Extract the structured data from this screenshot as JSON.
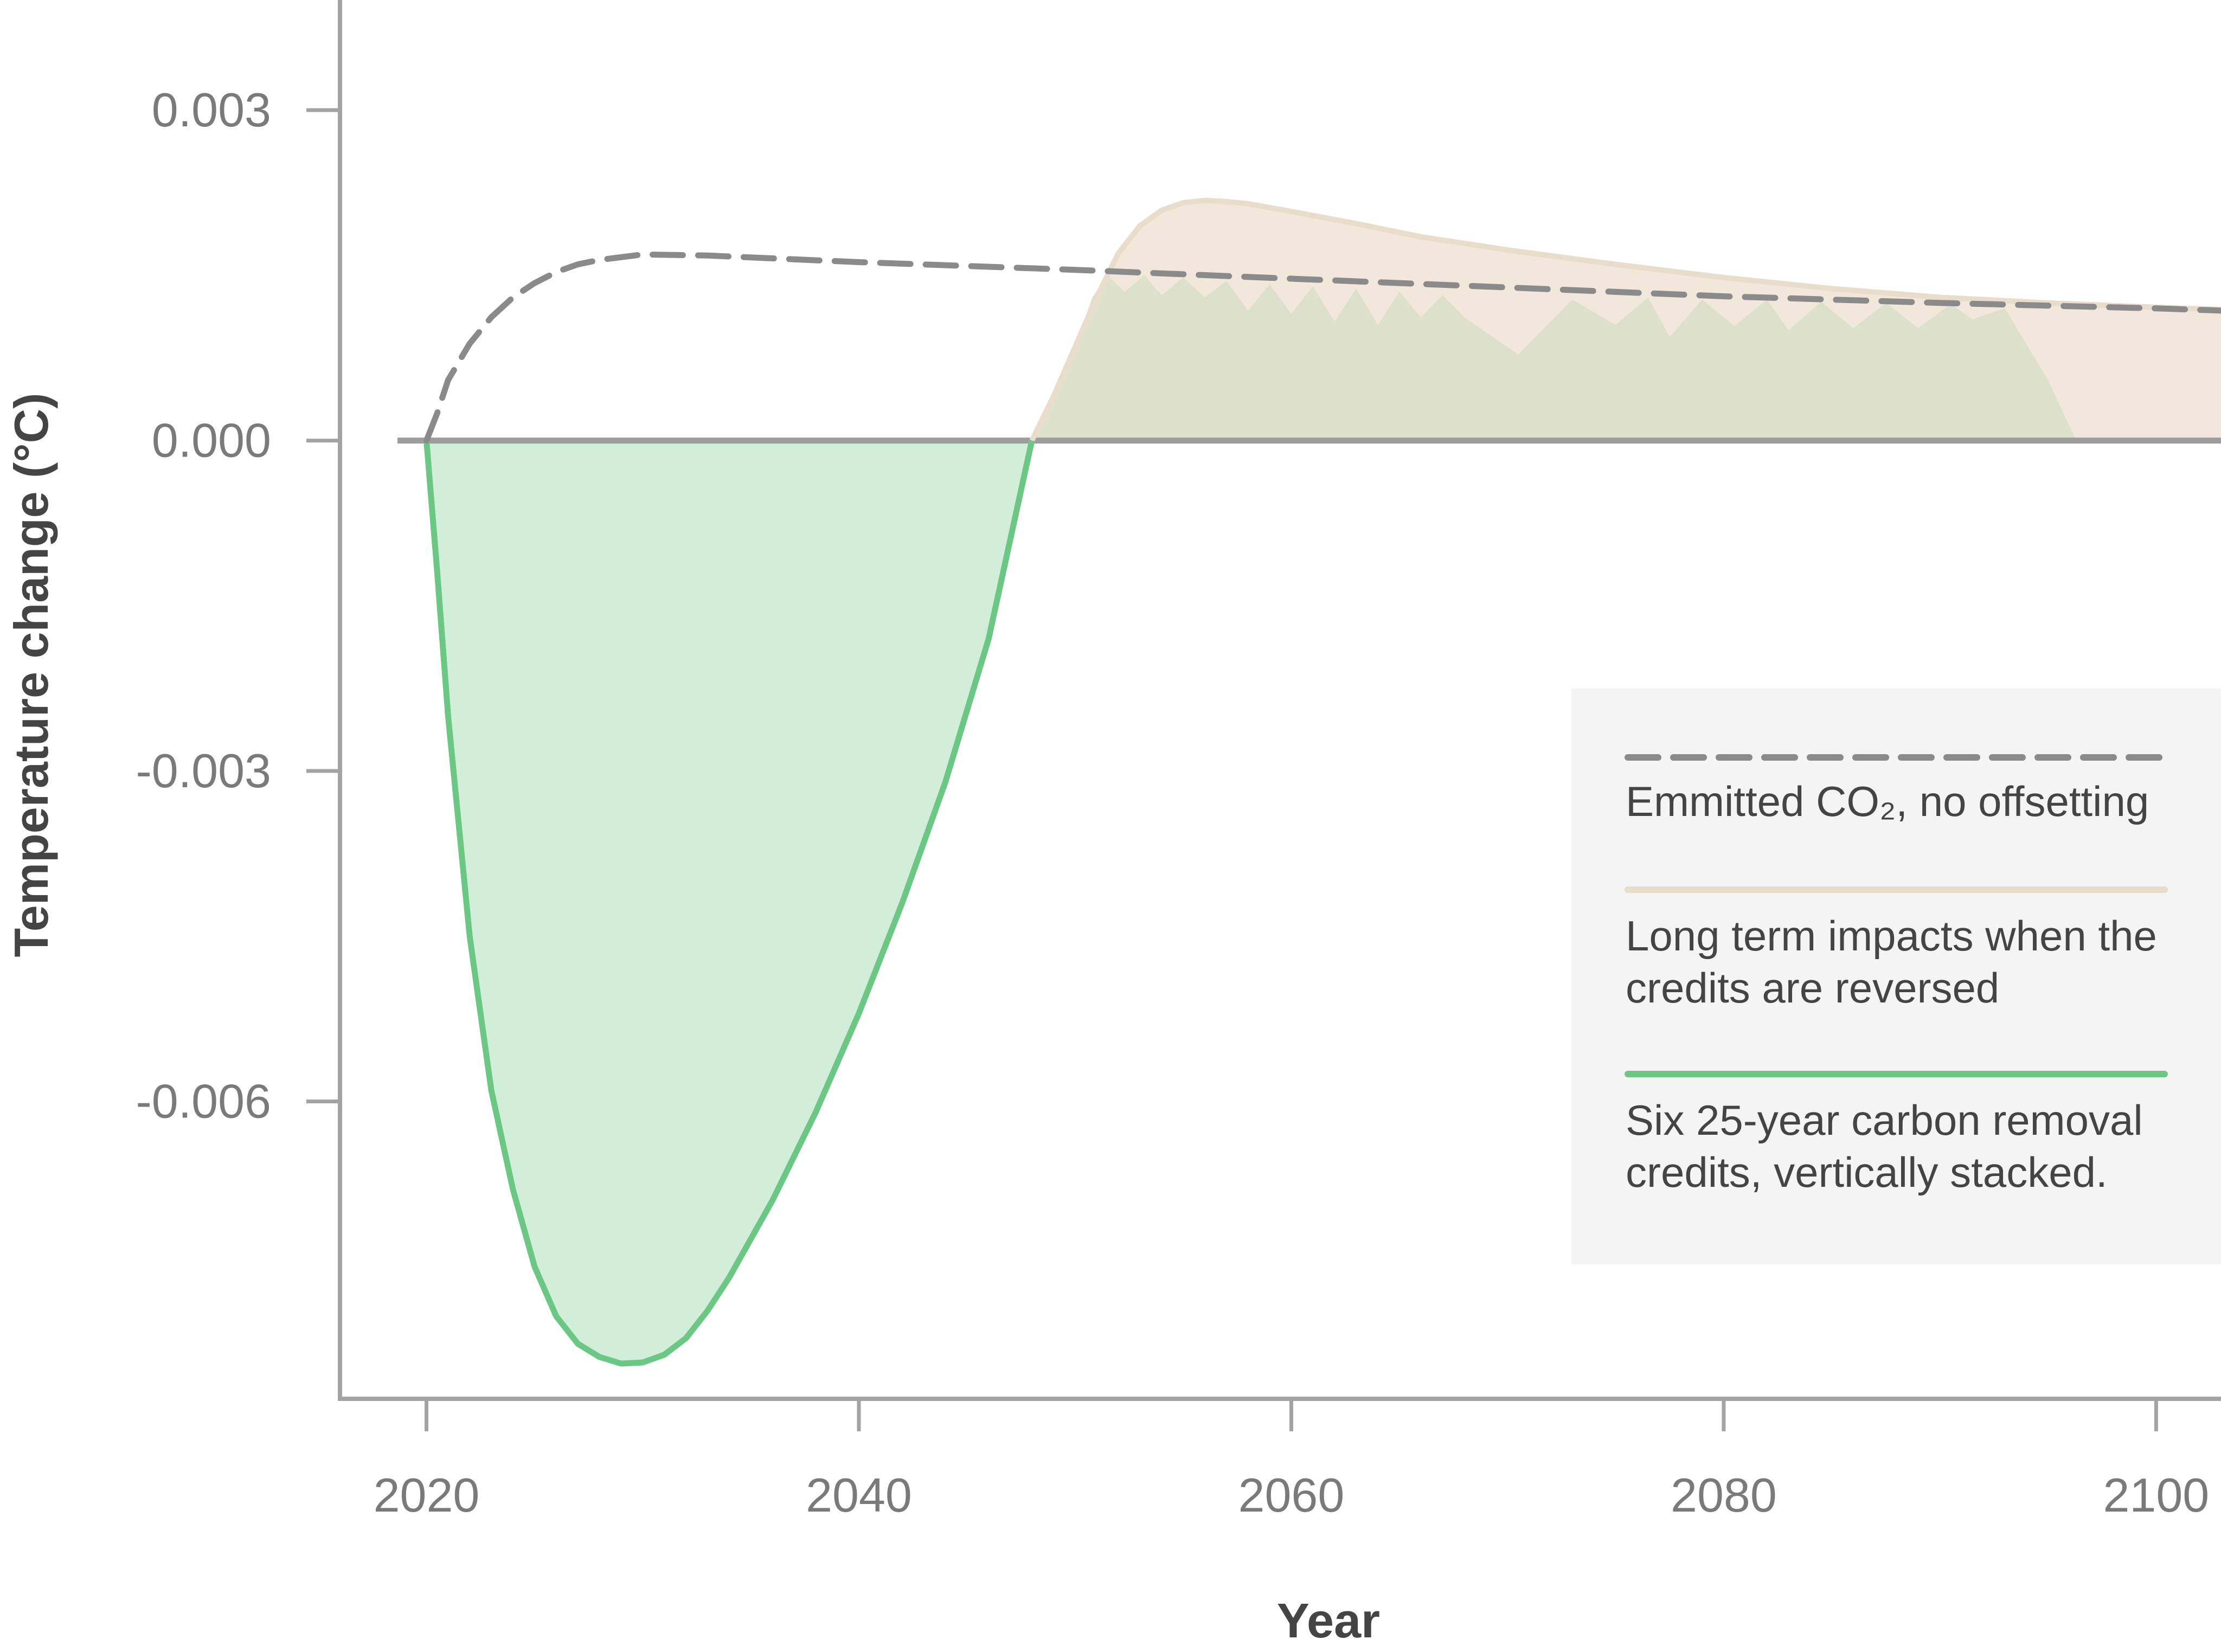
{
  "chart_data": {
    "type": "area",
    "title": "",
    "xlabel": "Year",
    "ylabel": "Temperature change (°C)",
    "xlim": [
      2016,
      2103
    ],
    "ylim": [
      -0.0087,
      0.004
    ],
    "x_ticks": [
      2020,
      2040,
      2060,
      2080,
      2100
    ],
    "x_tick_labels": [
      "2020",
      "2040",
      "2060",
      "2080",
      "2100"
    ],
    "y_ticks": [
      0.003,
      0.0,
      -0.003,
      -0.006
    ],
    "y_tick_labels": [
      "0.003",
      "0.000",
      "-0.003",
      "-0.006"
    ],
    "grid": false,
    "legend_position": "right",
    "legend": [
      {
        "series": "emitted",
        "style": "dashed",
        "label": "Emmitted CO₂, no offsetting"
      },
      {
        "series": "reversal",
        "style": "solid",
        "label": "Long term impacts when the credits are reversed"
      },
      {
        "series": "removal",
        "style": "solid",
        "label": "Six 25-year carbon removal credits, vertically stacked."
      }
    ],
    "colors": {
      "emitted": "#8a8a8a",
      "reversal_line": "#e8dccb",
      "reversal_fill": "#f1e7da",
      "removal_line": "#6cc784",
      "removal_fill": "#d1efd8",
      "stacked_fill": "#dde0cb",
      "axis": "#a3a3a3",
      "zero_line": "#9d9d9d",
      "tick_label": "#7a7a7a",
      "axis_title": "#444444",
      "legend_bg": "#f4f4f4",
      "legend_text": "#444444"
    },
    "series": [
      {
        "id": "emitted",
        "x": [
          2020,
          2020.5,
          2021,
          2022,
          2023,
          2024,
          2025,
          2026,
          2027,
          2028,
          2030,
          2033,
          2040,
          2050,
          2060,
          2070,
          2080,
          2090,
          2100,
          2103
        ],
        "y": [
          0.0,
          0.00025,
          0.00055,
          0.00088,
          0.00112,
          0.0013,
          0.00143,
          0.00153,
          0.0016,
          0.00164,
          0.00169,
          0.00168,
          0.00162,
          0.00155,
          0.00147,
          0.00139,
          0.00131,
          0.00125,
          0.0012,
          0.00118
        ]
      },
      {
        "id": "reversal",
        "x": [
          2048,
          2049,
          2050,
          2051,
          2052,
          2053,
          2054,
          2055,
          2056,
          2057,
          2058,
          2060,
          2063,
          2066,
          2070,
          2075,
          2080,
          2085,
          2090,
          2095,
          2100,
          2103
        ],
        "y": [
          0.0,
          0.0004,
          0.00085,
          0.0013,
          0.0017,
          0.00195,
          0.00209,
          0.00216,
          0.00218,
          0.00217,
          0.00215,
          0.00208,
          0.00197,
          0.00185,
          0.00173,
          0.0016,
          0.00148,
          0.00138,
          0.0013,
          0.00125,
          0.00121,
          0.00119
        ]
      },
      {
        "id": "removal",
        "x": [
          2020,
          2020.5,
          2021,
          2022,
          2023,
          2024,
          2025,
          2026,
          2027,
          2028,
          2029,
          2030,
          2031,
          2032,
          2033,
          2034,
          2036,
          2038,
          2040,
          2042,
          2044,
          2046,
          2047,
          2048
        ],
        "y": [
          0.0,
          -0.0012,
          -0.0025,
          -0.0045,
          -0.0059,
          -0.0068,
          -0.0075,
          -0.00795,
          -0.0082,
          -0.00832,
          -0.00838,
          -0.00837,
          -0.0083,
          -0.00815,
          -0.0079,
          -0.0076,
          -0.0069,
          -0.0061,
          -0.0052,
          -0.0042,
          -0.0031,
          -0.0018,
          -0.0009,
          0.0
        ]
      },
      {
        "id": "stacked_removal_area",
        "x": [
          2048,
          2049,
          2050,
          2050.8,
          2051.5,
          2052.3,
          2053.2,
          2054,
          2055,
          2056,
          2057,
          2058,
          2059,
          2060,
          2061,
          2062,
          2063,
          2064,
          2065,
          2066,
          2067,
          2068,
          2070.5,
          2073,
          2075,
          2076.5,
          2077.5,
          2079,
          2080.5,
          2082,
          2083,
          2084.5,
          2086,
          2087.5,
          2089,
          2090.5,
          2091.5,
          2093,
          2095,
          2096.3
        ],
        "y": [
          0.0,
          0.0004,
          0.00085,
          0.0013,
          0.0015,
          0.00135,
          0.0015,
          0.00132,
          0.00148,
          0.0013,
          0.00145,
          0.00118,
          0.00142,
          0.00115,
          0.0014,
          0.00108,
          0.00138,
          0.00105,
          0.00135,
          0.00112,
          0.00132,
          0.00112,
          0.00078,
          0.00128,
          0.00105,
          0.0013,
          0.00094,
          0.00128,
          0.00104,
          0.00128,
          0.001,
          0.00126,
          0.00102,
          0.00125,
          0.00102,
          0.00124,
          0.0011,
          0.0012,
          0.00055,
          0.0
        ]
      }
    ]
  }
}
